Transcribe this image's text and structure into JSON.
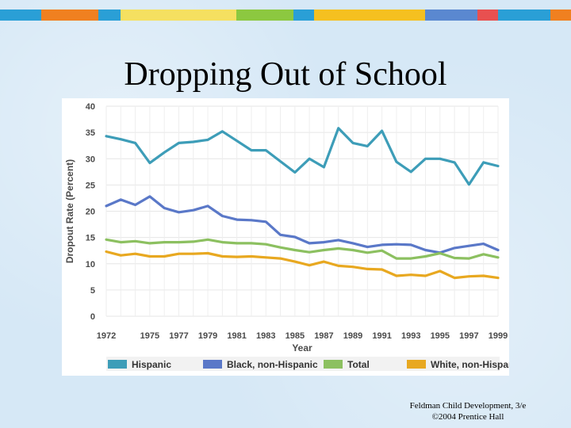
{
  "slide": {
    "title": "Dropping Out of School",
    "footer_line1": "Feldman Child Development, 3/e",
    "footer_line2": "©2004 Prentice Hall",
    "strip_colors": [
      "#2a9fd6",
      "#f08020",
      "#2a9fd6",
      "#f5e060",
      "#8cc840",
      "#2a9fd6",
      "#f5c020",
      "#5a88d0",
      "#e85050"
    ]
  },
  "chart_data": {
    "type": "line",
    "title": "",
    "xlabel": "Year",
    "ylabel": "Dropout Rate (Percent)",
    "ylim": [
      0,
      40
    ],
    "yticks": [
      0,
      5,
      10,
      15,
      20,
      25,
      30,
      35,
      40
    ],
    "xlim": [
      1972,
      1999
    ],
    "xticks": [
      "1972",
      "1975",
      "1977",
      "1979",
      "1981",
      "1983",
      "1985",
      "1987",
      "1989",
      "1991",
      "1993",
      "1995",
      "1997",
      "1999"
    ],
    "grid": true,
    "legend_position": "bottom",
    "x": [
      1972,
      1973,
      1974,
      1975,
      1976,
      1977,
      1978,
      1979,
      1980,
      1981,
      1982,
      1983,
      1984,
      1985,
      1986,
      1987,
      1988,
      1989,
      1990,
      1991,
      1992,
      1993,
      1994,
      1995,
      1996,
      1997,
      1998,
      1999
    ],
    "series": [
      {
        "name": "Hispanic",
        "color": "#3d9db8",
        "values": [
          34.3,
          33.7,
          33.0,
          29.2,
          31.2,
          33.0,
          33.2,
          33.6,
          35.2,
          33.4,
          31.6,
          31.6,
          29.5,
          27.4,
          30.0,
          28.4,
          35.8,
          33.0,
          32.4,
          35.3,
          29.4,
          27.5,
          30.0,
          30.0,
          29.3,
          25.1,
          29.3,
          28.6
        ]
      },
      {
        "name": "Black, non-Hispanic",
        "color": "#5a78c8",
        "values": [
          21.0,
          22.2,
          21.2,
          22.8,
          20.6,
          19.8,
          20.2,
          21.0,
          19.1,
          18.4,
          18.3,
          18.0,
          15.5,
          15.1,
          13.9,
          14.1,
          14.5,
          13.9,
          13.2,
          13.6,
          13.7,
          13.6,
          12.6,
          12.1,
          13.0,
          13.4,
          13.8,
          12.6
        ]
      },
      {
        "name": "Total",
        "color": "#8cc060",
        "values": [
          14.6,
          14.1,
          14.3,
          13.9,
          14.1,
          14.1,
          14.2,
          14.6,
          14.1,
          13.9,
          13.9,
          13.7,
          13.1,
          12.6,
          12.2,
          12.6,
          12.9,
          12.6,
          12.1,
          12.5,
          11.0,
          11.0,
          11.4,
          12.0,
          11.1,
          11.0,
          11.8,
          11.2
        ]
      },
      {
        "name": "White, non-Hispanic",
        "color": "#e8a820",
        "values": [
          12.3,
          11.6,
          11.9,
          11.4,
          11.4,
          11.9,
          11.9,
          12.0,
          11.4,
          11.3,
          11.4,
          11.2,
          11.0,
          10.4,
          9.7,
          10.4,
          9.6,
          9.4,
          9.0,
          8.9,
          7.7,
          7.9,
          7.7,
          8.6,
          7.3,
          7.6,
          7.7,
          7.3
        ]
      }
    ]
  }
}
